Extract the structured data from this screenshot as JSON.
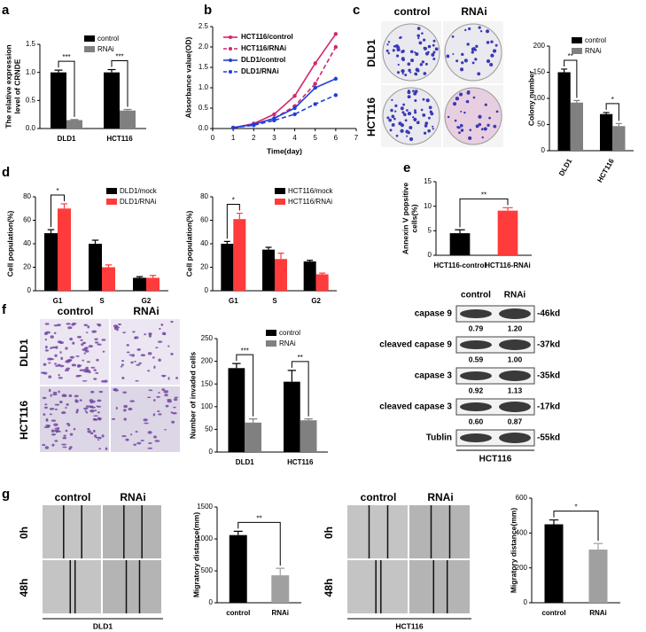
{
  "chart_data": [
    {
      "type": "bar",
      "ylabel": [
        "The relative expression",
        "level of CRNDE"
      ],
      "categories": [
        "DLD1",
        "HCT116"
      ],
      "series": [
        {
          "name": "control",
          "color": "#000000",
          "values": [
            1.0,
            1.0
          ],
          "errors": [
            0.04,
            0.05
          ]
        },
        {
          "name": "RNAi",
          "color": "#808080",
          "values": [
            0.15,
            0.32
          ],
          "errors": [
            0.01,
            0.02
          ]
        }
      ],
      "ylim": [
        0,
        1.5
      ],
      "yticks": [
        {
          "value": 0,
          "label": "0.0"
        },
        {
          "value": 0.5,
          "label": "0.5"
        },
        {
          "value": 1,
          "label": "1.0"
        },
        {
          "value": 1.5,
          "label": "1.5"
        }
      ],
      "legend": "upper right",
      "significance": [
        "***",
        "***"
      ]
    },
    {
      "type": "line",
      "xlabel": "Time(day)",
      "ylabel": "Absorbance value(OD)",
      "x": [
        1,
        2,
        3,
        4,
        5,
        6
      ],
      "series": [
        {
          "name": "HCT116/control",
          "color": "#d6246e",
          "line_style": "solid",
          "values": [
            0.02,
            0.12,
            0.35,
            0.8,
            1.6,
            2.32
          ]
        },
        {
          "name": "HCT116/RNAi",
          "color": "#d6246e",
          "line_style": "dashed",
          "values": [
            0.02,
            0.1,
            0.25,
            0.55,
            1.1,
            2.0
          ]
        },
        {
          "name": "DLD1/control",
          "color": "#1f3fd6",
          "line_style": "solid",
          "values": [
            0.02,
            0.1,
            0.25,
            0.5,
            1.0,
            1.22
          ]
        },
        {
          "name": "DLD1/RNAi",
          "color": "#1f3fd6",
          "line_style": "dashed",
          "values": [
            0.02,
            0.08,
            0.2,
            0.35,
            0.6,
            0.82
          ]
        }
      ],
      "xlim": [
        0,
        7
      ],
      "xticks": [
        0,
        1,
        2,
        3,
        4,
        5,
        6,
        7
      ],
      "ylim": [
        0,
        2.5
      ],
      "yticks": [
        {
          "value": 0,
          "label": "0.0"
        },
        {
          "value": 0.5,
          "label": "0.5"
        },
        {
          "value": 1,
          "label": "1.0"
        },
        {
          "value": 1.5,
          "label": "1.5"
        },
        {
          "value": 2,
          "label": "2.0"
        },
        {
          "value": 2.5,
          "label": "2.5"
        }
      ],
      "legend": "upper left"
    },
    {
      "type": "bar",
      "ylabel": "Colony number",
      "categories": [
        "DLD1",
        "HCT116"
      ],
      "series": [
        {
          "name": "control",
          "color": "#000000",
          "values": [
            150,
            70
          ],
          "errors": [
            6,
            3
          ]
        },
        {
          "name": "RNAi",
          "color": "#808080",
          "values": [
            92,
            47
          ],
          "errors": [
            4,
            5
          ]
        }
      ],
      "ylim": [
        0,
        200
      ],
      "yticks": [
        0,
        50,
        100,
        150,
        200
      ],
      "legend": "upper right",
      "significance": [
        "**",
        "*"
      ]
    },
    {
      "type": "bar",
      "ylabel": "Cell population(%)",
      "categories": [
        "G1",
        "S",
        "G2"
      ],
      "series": [
        {
          "name": "DLD1/mock",
          "color": "#000000",
          "values": [
            49,
            40,
            11
          ],
          "errors": [
            3,
            3,
            1
          ]
        },
        {
          "name": "DLD1/RNAi",
          "color": "#ff3b3b",
          "values": [
            70,
            20,
            11
          ],
          "errors": [
            4,
            2,
            2
          ]
        }
      ],
      "ylim": [
        0,
        80
      ],
      "yticks": [
        0,
        20,
        40,
        60,
        80
      ],
      "legend": "upper right",
      "significance": [
        "*",
        null,
        null
      ]
    },
    {
      "type": "bar",
      "ylabel": "Cell population(%)",
      "categories": [
        "G1",
        "S",
        "G2"
      ],
      "series": [
        {
          "name": "HCT116/mock",
          "color": "#000000",
          "values": [
            40,
            35,
            25
          ],
          "errors": [
            2,
            2,
            1
          ]
        },
        {
          "name": "HCT116/RNAi",
          "color": "#ff3b3b",
          "values": [
            61,
            27,
            14
          ],
          "errors": [
            5,
            5,
            1
          ]
        }
      ],
      "ylim": [
        0,
        80
      ],
      "yticks": [
        0,
        20,
        40,
        60,
        80
      ],
      "legend": "upper right",
      "significance": [
        "*",
        null,
        null
      ]
    },
    {
      "type": "bar",
      "ylabel": [
        "Annexin V popsitive",
        "cells(%)"
      ],
      "categories": [
        "HCT116-control",
        "HCT116-RNAi"
      ],
      "values": [
        4.5,
        9.1
      ],
      "errors": [
        0.7,
        0.6
      ],
      "colors": [
        "#000000",
        "#ff3b3b"
      ],
      "ylim": [
        0,
        15
      ],
      "yticks": [
        0,
        5,
        10,
        15
      ],
      "significance": [
        "**"
      ]
    },
    {
      "type": "bar",
      "ylabel": "Number of invaded cells",
      "categories": [
        "DLD1",
        "HCT116"
      ],
      "series": [
        {
          "name": "control",
          "color": "#000000",
          "values": [
            185,
            155
          ],
          "errors": [
            10,
            25
          ]
        },
        {
          "name": "RNAi",
          "color": "#808080",
          "values": [
            65,
            70
          ],
          "errors": [
            8,
            3
          ]
        }
      ],
      "ylim": [
        0,
        250
      ],
      "yticks": [
        0,
        50,
        100,
        150,
        200,
        250
      ],
      "legend": "upper right",
      "significance": [
        "***",
        "**"
      ]
    },
    {
      "type": "bar",
      "ylabel": "Migratory distance(mm)",
      "categories": [
        "control",
        "RNAi"
      ],
      "values": [
        1060,
        430
      ],
      "errors": [
        60,
        110
      ],
      "colors": [
        "#000000",
        "#a0a0a0"
      ],
      "ylim": [
        0,
        1500
      ],
      "yticks": [
        0,
        500,
        1000,
        1500
      ],
      "significance": [
        "**"
      ]
    },
    {
      "type": "bar",
      "ylabel": "Migratory distance(mm)",
      "categories": [
        "control",
        "RNAi"
      ],
      "values": [
        450,
        305
      ],
      "errors": [
        25,
        35
      ],
      "colors": [
        "#000000",
        "#a0a0a0"
      ],
      "ylim": [
        0,
        600
      ],
      "yticks": [
        0,
        200,
        400,
        600
      ],
      "significance": [
        "*"
      ]
    }
  ],
  "figure": {
    "panel_labels": [
      "a",
      "b",
      "c",
      "d",
      "e",
      "f",
      "g"
    ],
    "colony_images": {
      "columns": [
        "control",
        "RNAi"
      ],
      "rows": [
        "DLD1",
        "HCT116"
      ]
    },
    "invasion_images": {
      "columns": [
        "control",
        "RNAi"
      ],
      "rows": [
        "DLD1",
        "HCT116"
      ]
    },
    "scratch_dld1": {
      "columns": [
        "control",
        "RNAi"
      ],
      "rows": [
        "0h",
        "48h"
      ],
      "cell_line": "DLD1"
    },
    "scratch_hct116": {
      "columns": [
        "control",
        "RNAi"
      ],
      "rows": [
        "0h",
        "48h"
      ],
      "cell_line": "HCT116"
    },
    "blot": {
      "columns": [
        "control",
        "RNAi"
      ],
      "cell_line": "HCT116",
      "rows": [
        {
          "label": "capase 9",
          "size": "-46kd",
          "ratios": [
            "0.79",
            "1.20"
          ]
        },
        {
          "label": "cleaved capase 9",
          "size": "-37kd",
          "ratios": [
            "0.59",
            "1.00"
          ]
        },
        {
          "label": "capase 3",
          "size": "-35kd",
          "ratios": [
            "0.92",
            "1.13"
          ]
        },
        {
          "label": "cleaved capase 3",
          "size": "-17kd",
          "ratios": [
            "0.60",
            "0.87"
          ]
        },
        {
          "label": "Tublin",
          "size": "-55kd"
        }
      ]
    }
  }
}
